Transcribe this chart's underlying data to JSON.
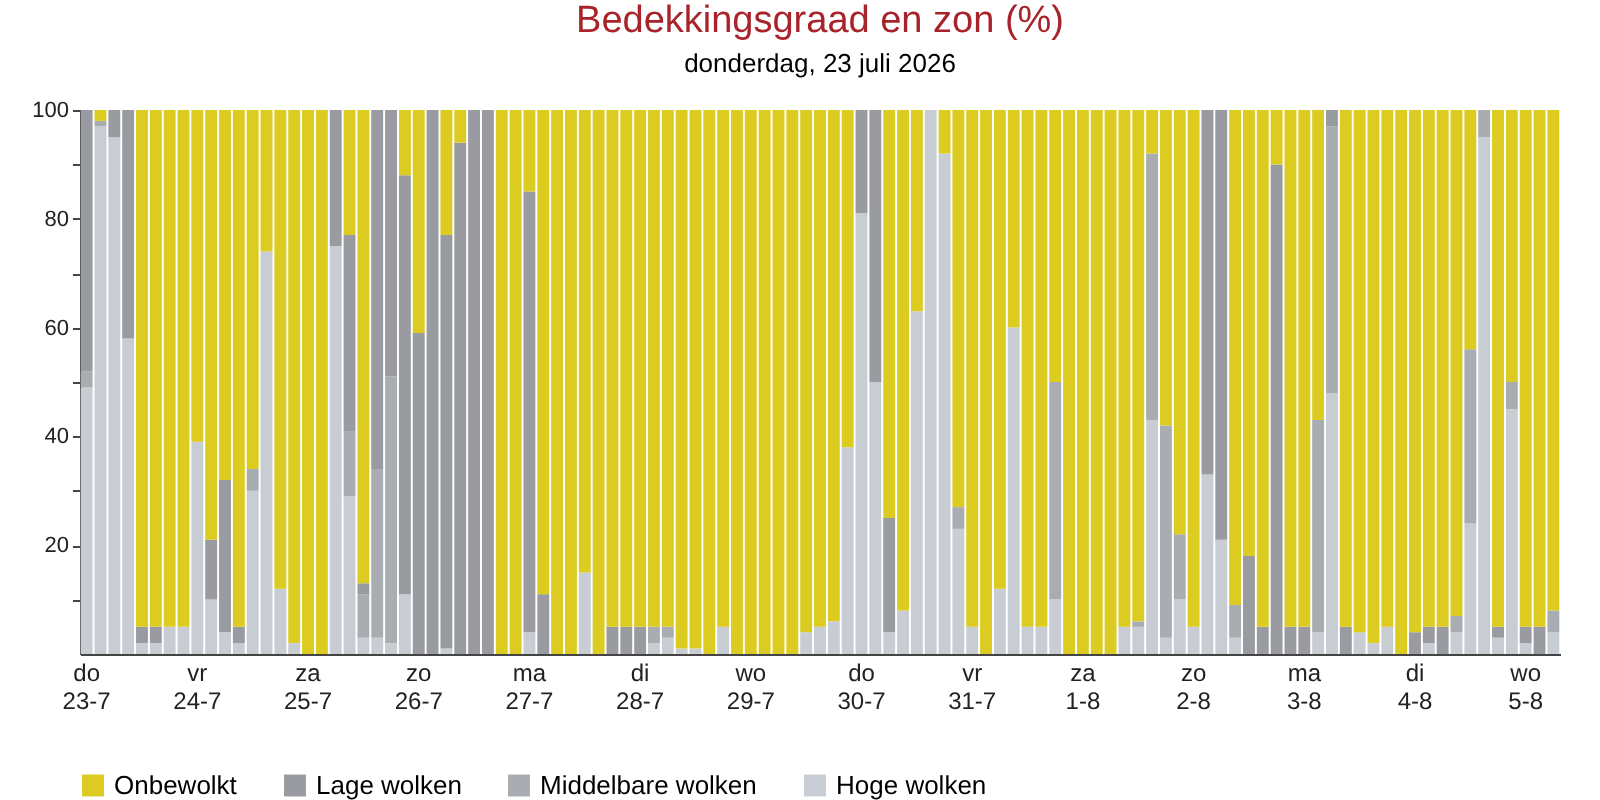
{
  "chart_data": {
    "type": "bar",
    "stacked": true,
    "title": "Bedekkingsgraad en zon (%)",
    "subtitle": "donderdag, 23 juli 2026",
    "categories": [
      "do 23-7",
      null,
      null,
      null,
      null,
      null,
      null,
      null,
      "vr 24-7",
      null,
      null,
      null,
      null,
      null,
      null,
      null,
      "za 25-7",
      null,
      null,
      null,
      null,
      null,
      null,
      null,
      "zo 26-7",
      null,
      null,
      null,
      null,
      null,
      null,
      null,
      "ma 27-7",
      null,
      null,
      null,
      null,
      null,
      null,
      null,
      "di 28-7",
      null,
      null,
      null,
      null,
      null,
      null,
      null,
      "wo 29-7",
      null,
      null,
      null,
      null,
      null,
      null,
      null,
      "do 30-7",
      null,
      null,
      null,
      null,
      null,
      null,
      null,
      "vr 31-7",
      null,
      null,
      null,
      null,
      null,
      null,
      null,
      "za 1-8",
      null,
      null,
      null,
      null,
      null,
      null,
      null,
      "zo 2-8",
      null,
      null,
      null,
      null,
      null,
      null,
      null,
      "ma 3-8",
      null,
      null,
      null,
      null,
      null,
      null,
      null,
      "di 4-8",
      null,
      null,
      null,
      null,
      null,
      null,
      null,
      "wo 5-8",
      null,
      null
    ],
    "series": [
      {
        "name": "Hoge wolken",
        "color": "#c8ccd3",
        "values": [
          49,
          97,
          95,
          58,
          2,
          2,
          5,
          5,
          39,
          10,
          4,
          2,
          30,
          74,
          12,
          2,
          0,
          0,
          75,
          29,
          3,
          3,
          2,
          11,
          0,
          0,
          1,
          0,
          0,
          0,
          0,
          0,
          4,
          0,
          0,
          0,
          15,
          0,
          0,
          0,
          0,
          2,
          3,
          1,
          1,
          0,
          5,
          0,
          0,
          0,
          0,
          0,
          4,
          5,
          6,
          38,
          81,
          50,
          4,
          8,
          63,
          100,
          92,
          23,
          5,
          0,
          12,
          60,
          5,
          5,
          10,
          0,
          0,
          0,
          0,
          5,
          5,
          43,
          3,
          10,
          5,
          33,
          21,
          3,
          0,
          0,
          0,
          0,
          0,
          4,
          48,
          0,
          4,
          2,
          5,
          0,
          0,
          2,
          0,
          4,
          24,
          95,
          3,
          45,
          2,
          0,
          4
        ]
      },
      {
        "name": "Middelbare wolken",
        "color": "#a9acb1",
        "values": [
          3,
          1,
          0,
          0,
          0,
          0,
          0,
          0,
          0,
          0,
          0,
          0,
          4,
          0,
          0,
          0,
          0,
          0,
          0,
          12,
          8,
          31,
          49,
          0,
          0,
          0,
          0,
          0,
          0,
          0,
          0,
          0,
          0,
          0,
          0,
          0,
          0,
          0,
          0,
          0,
          0,
          3,
          2,
          0,
          0,
          0,
          0,
          0,
          0,
          0,
          0,
          0,
          0,
          0,
          0,
          0,
          0,
          0,
          0,
          0,
          0,
          0,
          0,
          4,
          0,
          0,
          0,
          0,
          0,
          0,
          40,
          0,
          0,
          0,
          0,
          0,
          1,
          49,
          39,
          12,
          0,
          0,
          0,
          6,
          0,
          0,
          0,
          0,
          0,
          39,
          49,
          0,
          0,
          0,
          0,
          0,
          0,
          0,
          0,
          3,
          32,
          5,
          0,
          5,
          0,
          0,
          4
        ]
      },
      {
        "name": "Lage wolken",
        "color": "#999ba0",
        "values": [
          48,
          0,
          5,
          42,
          3,
          3,
          0,
          0,
          0,
          11,
          28,
          3,
          0,
          0,
          0,
          0,
          0,
          0,
          25,
          36,
          2,
          66,
          49,
          77,
          59,
          100,
          76,
          94,
          100,
          100,
          0,
          0,
          81,
          11,
          0,
          0,
          0,
          0,
          5,
          5,
          5,
          0,
          0,
          0,
          0,
          0,
          0,
          0,
          0,
          0,
          0,
          0,
          0,
          0,
          0,
          0,
          19,
          50,
          21,
          0,
          0,
          0,
          0,
          0,
          0,
          0,
          0,
          0,
          0,
          0,
          0,
          0,
          0,
          0,
          0,
          0,
          0,
          0,
          0,
          0,
          0,
          67,
          79,
          0,
          18,
          5,
          90,
          5,
          5,
          0,
          3,
          5,
          0,
          0,
          0,
          0,
          4,
          3,
          5,
          0,
          0,
          0,
          2,
          0,
          3,
          5,
          0
        ]
      },
      {
        "name": "Onbewolkt",
        "color": "#dccb20",
        "values": [
          0,
          2,
          0,
          0,
          95,
          95,
          95,
          95,
          61,
          79,
          68,
          95,
          66,
          26,
          88,
          98,
          100,
          100,
          0,
          23,
          87,
          0,
          0,
          12,
          41,
          0,
          23,
          6,
          0,
          0,
          100,
          100,
          15,
          89,
          100,
          100,
          85,
          100,
          95,
          95,
          95,
          95,
          95,
          99,
          99,
          100,
          95,
          100,
          100,
          100,
          100,
          100,
          96,
          95,
          94,
          62,
          0,
          0,
          75,
          92,
          37,
          0,
          8,
          73,
          95,
          100,
          88,
          40,
          95,
          95,
          50,
          100,
          100,
          100,
          100,
          95,
          94,
          8,
          58,
          78,
          95,
          0,
          0,
          91,
          82,
          95,
          10,
          95,
          95,
          57,
          0,
          95,
          96,
          98,
          95,
          100,
          96,
          95,
          95,
          93,
          44,
          0,
          95,
          50,
          95,
          95,
          92
        ]
      }
    ],
    "ylim": [
      0,
      100
    ],
    "yticks": [
      {
        "value": 10,
        "label": null
      },
      20,
      {
        "value": 30,
        "label": null
      },
      40,
      {
        "value": 50,
        "label": null
      },
      60,
      {
        "value": 70,
        "label": null
      },
      80,
      {
        "value": 90,
        "label": null
      },
      100
    ],
    "grid": false,
    "legend": "bottom"
  }
}
